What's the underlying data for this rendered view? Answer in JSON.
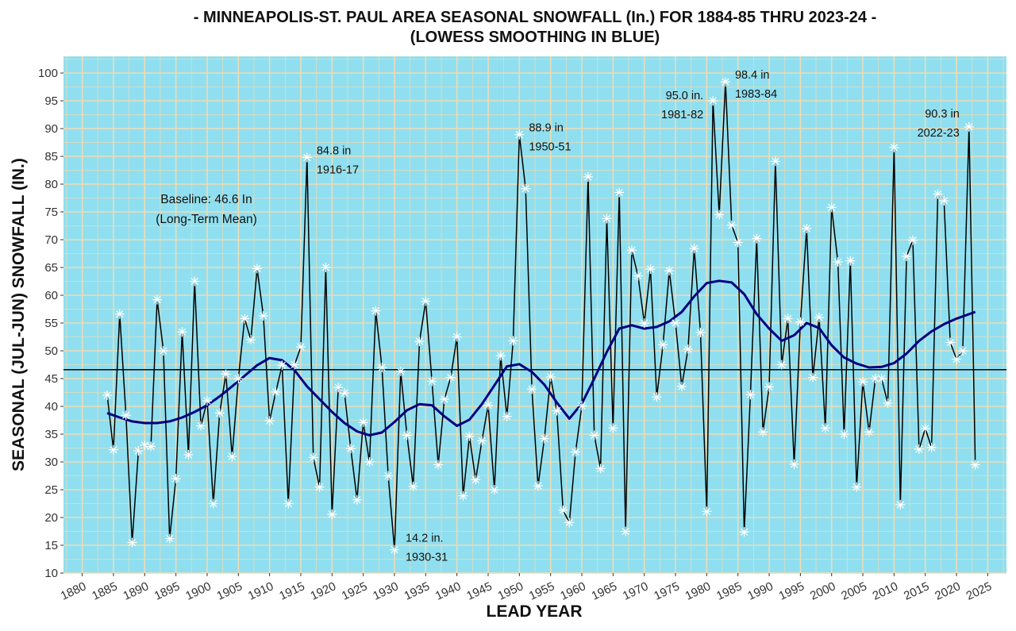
{
  "chart_data": {
    "type": "line",
    "title": "- MINNEAPOLIS-ST. PAUL AREA SEASONAL SNOWFALL (In.) FOR 1884-85 THRU 2023-24 -",
    "subtitle": "(LOWESS SMOOTHING IN BLUE)",
    "xlabel": "LEAD YEAR",
    "ylabel": "SEASONAL (JUL-JUN) SNOWFALL (IN.)",
    "xlim": [
      1877,
      2028
    ],
    "ylim": [
      10,
      103
    ],
    "x_ticks": [
      1880,
      1885,
      1890,
      1895,
      1900,
      1905,
      1910,
      1915,
      1920,
      1925,
      1930,
      1935,
      1940,
      1945,
      1950,
      1955,
      1960,
      1965,
      1970,
      1975,
      1980,
      1985,
      1990,
      1995,
      2000,
      2005,
      2010,
      2015,
      2020,
      2025
    ],
    "y_ticks": [
      10,
      15,
      20,
      25,
      30,
      35,
      40,
      45,
      50,
      55,
      60,
      65,
      70,
      75,
      80,
      85,
      90,
      95,
      100
    ],
    "grid": true,
    "colors": {
      "panel": "#8fdff0",
      "grid": "#f0dcb4",
      "series": "#000000",
      "smooth": "#000080",
      "marker": "#ffffff",
      "baseline": "#000000"
    },
    "baseline": {
      "value": 46.6,
      "label_line1": "Baseline: 46.6 In",
      "label_line2": "(Long-Term Mean)"
    },
    "series": [
      {
        "name": "Seasonal Snowfall",
        "x": [
          1884,
          1885,
          1886,
          1887,
          1888,
          1889,
          1890,
          1891,
          1892,
          1893,
          1894,
          1895,
          1896,
          1897,
          1898,
          1899,
          1900,
          1901,
          1902,
          1903,
          1904,
          1905,
          1906,
          1907,
          1908,
          1909,
          1910,
          1911,
          1912,
          1913,
          1914,
          1915,
          1916,
          1917,
          1918,
          1919,
          1920,
          1921,
          1922,
          1923,
          1924,
          1925,
          1926,
          1927,
          1928,
          1929,
          1930,
          1931,
          1932,
          1933,
          1934,
          1935,
          1936,
          1937,
          1938,
          1939,
          1940,
          1941,
          1942,
          1943,
          1944,
          1945,
          1946,
          1947,
          1948,
          1949,
          1950,
          1951,
          1952,
          1953,
          1954,
          1955,
          1956,
          1957,
          1958,
          1959,
          1960,
          1961,
          1962,
          1963,
          1964,
          1965,
          1966,
          1967,
          1968,
          1969,
          1970,
          1971,
          1972,
          1973,
          1974,
          1975,
          1976,
          1977,
          1978,
          1979,
          1980,
          1981,
          1982,
          1983,
          1984,
          1985,
          1986,
          1987,
          1988,
          1989,
          1990,
          1991,
          1992,
          1993,
          1994,
          1995,
          1996,
          1997,
          1998,
          1999,
          2000,
          2001,
          2002,
          2003,
          2004,
          2005,
          2006,
          2007,
          2008,
          2009,
          2010,
          2011,
          2012,
          2013,
          2014,
          2015,
          2016,
          2017,
          2018,
          2019,
          2020,
          2021,
          2022,
          2023
        ],
        "y": [
          42.0,
          32.2,
          56.6,
          38.4,
          15.5,
          32.0,
          33.0,
          32.8,
          59.2,
          50.0,
          16.2,
          27.0,
          53.4,
          31.3,
          62.5,
          36.5,
          41.0,
          22.5,
          38.8,
          45.8,
          31.0,
          45.0,
          55.8,
          52.0,
          64.8,
          56.3,
          37.4,
          42.6,
          47.4,
          22.5,
          47.5,
          50.7,
          84.8,
          30.8,
          25.5,
          65.0,
          20.6,
          43.4,
          42.4,
          32.4,
          23.2,
          37.1,
          30.0,
          57.2,
          47.0,
          27.5,
          14.2,
          46.3,
          34.8,
          25.6,
          51.7,
          58.9,
          44.5,
          29.5,
          41.3,
          45.2,
          52.5,
          23.9,
          34.6,
          26.8,
          33.8,
          40.2,
          25.0,
          49.1,
          38.2,
          51.8,
          88.9,
          79.2,
          43.1,
          25.7,
          34.2,
          45.3,
          39.2,
          21.3,
          19.1,
          31.8,
          40.1,
          81.3,
          34.8,
          28.8,
          73.8,
          36.1,
          78.5,
          17.5,
          68.1,
          63.5,
          55.0,
          64.7,
          41.7,
          51.1,
          64.4,
          55.0,
          43.6,
          50.3,
          68.4,
          53.3,
          21.1,
          95.0,
          74.5,
          98.4,
          72.6,
          69.5,
          17.4,
          42.1,
          70.2,
          35.4,
          43.5,
          84.1,
          47.5,
          55.8,
          29.6,
          55.2,
          72.0,
          45.2,
          56.0,
          36.1,
          75.8,
          66.0,
          35.0,
          66.2,
          25.5,
          44.4,
          35.4,
          45.0,
          45.0,
          40.6,
          86.6,
          22.3,
          67.0,
          69.9,
          32.3,
          36.0,
          32.6,
          78.2,
          77.0,
          51.5,
          48.5,
          50.0,
          90.3,
          29.5
        ]
      },
      {
        "name": "LOWESS smooth",
        "x": [
          1884,
          1886,
          1888,
          1890,
          1892,
          1894,
          1896,
          1898,
          1900,
          1902,
          1904,
          1906,
          1908,
          1910,
          1912,
          1914,
          1916,
          1918,
          1920,
          1922,
          1924,
          1926,
          1928,
          1930,
          1932,
          1934,
          1936,
          1938,
          1940,
          1942,
          1944,
          1946,
          1948,
          1950,
          1952,
          1954,
          1956,
          1958,
          1960,
          1962,
          1964,
          1966,
          1968,
          1970,
          1972,
          1974,
          1976,
          1978,
          1980,
          1982,
          1984,
          1986,
          1988,
          1990,
          1992,
          1994,
          1996,
          1998,
          2000,
          2002,
          2004,
          2006,
          2008,
          2010,
          2012,
          2014,
          2016,
          2018,
          2020,
          2023
        ],
        "y": [
          38.8,
          38.0,
          37.3,
          37.0,
          37.0,
          37.3,
          38.0,
          39.0,
          40.2,
          41.8,
          43.6,
          45.5,
          47.4,
          48.7,
          48.3,
          46.5,
          43.6,
          41.3,
          39.0,
          37.0,
          35.5,
          34.8,
          35.3,
          37.2,
          39.3,
          40.4,
          40.2,
          38.2,
          36.5,
          37.6,
          40.4,
          43.8,
          47.2,
          47.6,
          46.2,
          43.9,
          40.7,
          37.8,
          40.5,
          45.0,
          49.8,
          54.0,
          54.6,
          54.0,
          54.3,
          55.3,
          57.0,
          59.8,
          62.2,
          62.6,
          62.3,
          60.2,
          56.6,
          54.0,
          51.8,
          52.8,
          55.0,
          54.1,
          51.0,
          48.8,
          47.7,
          47.0,
          47.1,
          47.8,
          49.5,
          51.8,
          53.5,
          54.8,
          55.8,
          57.0
        ]
      }
    ],
    "annotations": [
      {
        "x_year": 1930,
        "value": 14.2,
        "line1": "14.2 in.",
        "line2": "1930-31"
      },
      {
        "x_year": 1916,
        "value": 84.8,
        "line1": "84.8 in",
        "line2": "1916-17"
      },
      {
        "x_year": 1950,
        "value": 88.9,
        "line1": "88.9 in",
        "line2": "1950-51"
      },
      {
        "x_year": 1981,
        "value": 95.0,
        "line1": "95.0 in.",
        "line2": "1981-82"
      },
      {
        "x_year": 1983,
        "value": 98.4,
        "line1": "98.4 in",
        "line2": "1983-84"
      },
      {
        "x_year": 2022,
        "value": 90.3,
        "line1": "90.3 in",
        "line2": "2022-23"
      }
    ]
  }
}
